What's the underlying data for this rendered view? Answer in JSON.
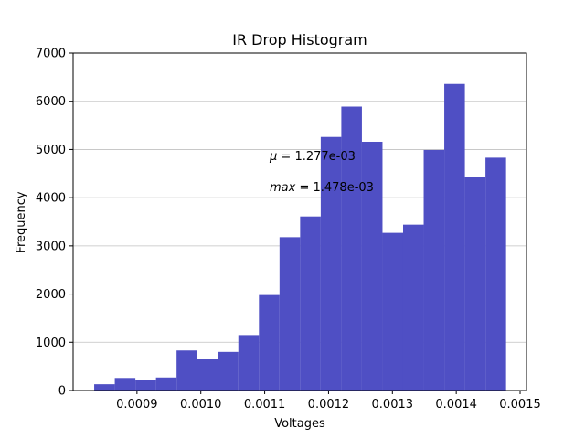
{
  "chart_data": {
    "type": "bar",
    "title": "IR Drop Histogram",
    "xlabel": "Voltages",
    "ylabel": "Frequency",
    "xlim": [
      0.0008,
      0.00151
    ],
    "ylim": [
      0,
      7000
    ],
    "xticks": [
      0.0009,
      0.001,
      0.0011,
      0.0012,
      0.0013,
      0.0014,
      0.0015
    ],
    "xtick_labels": [
      "0.0009",
      "0.0010",
      "0.0011",
      "0.0012",
      "0.0013",
      "0.0014",
      "0.0015"
    ],
    "yticks": [
      0,
      1000,
      2000,
      3000,
      4000,
      5000,
      6000,
      7000
    ],
    "ytick_labels": [
      "0",
      "1000",
      "2000",
      "3000",
      "4000",
      "5000",
      "6000",
      "7000"
    ],
    "grid": "y",
    "color": "#4f4fc4",
    "bins": {
      "start": 0.000833,
      "width": 3.225e-05,
      "counts": [
        130,
        260,
        220,
        270,
        830,
        660,
        800,
        1150,
        1980,
        3180,
        3610,
        5260,
        5890,
        5160,
        3270,
        3440,
        4990,
        6360,
        4430,
        4830
      ]
    },
    "annotations": [
      {
        "label": "$\\mu = 1.277e-03$",
        "text_prefix": "μ",
        "text_rest": " = 1.277e-03"
      },
      {
        "label": "$max = 1.478e-03$",
        "text_prefix": "max",
        "text_rest": " = 1.478e-03"
      }
    ]
  }
}
